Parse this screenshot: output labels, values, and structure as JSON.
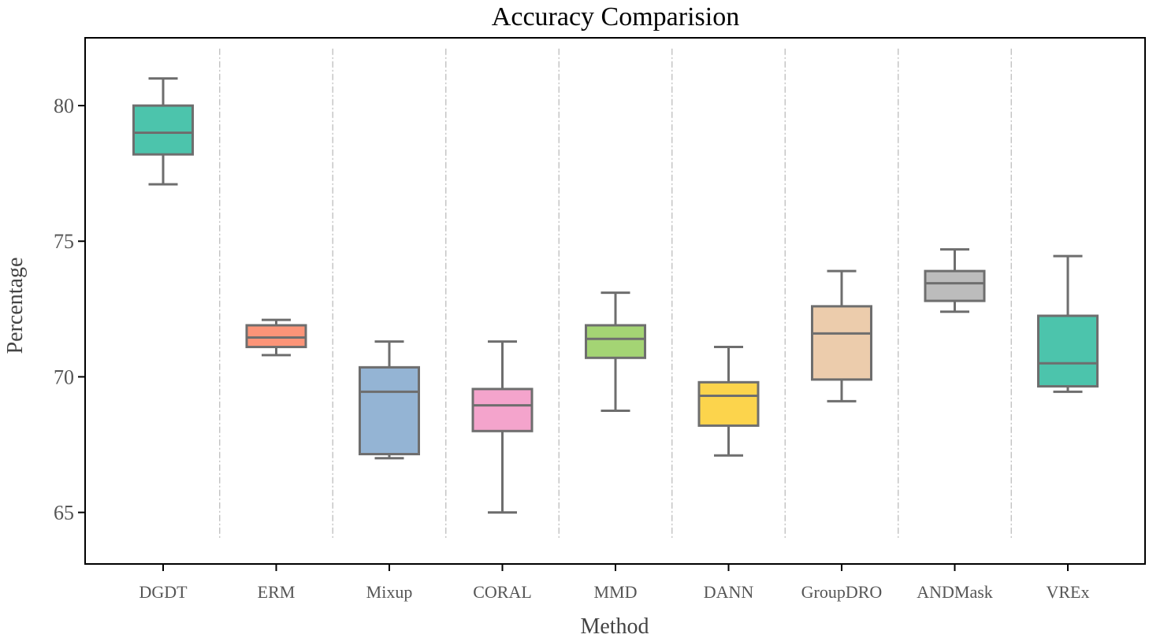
{
  "chart_data": {
    "type": "box",
    "title": "Accuracy Comparision",
    "xlabel": "Method",
    "ylabel": "Percentage",
    "ylim": [
      63.1,
      82.5
    ],
    "yticks": [
      65,
      70,
      75,
      80
    ],
    "grid": "vertical dash-dot separators between methods",
    "categories": [
      "DGDT",
      "ERM",
      "Mixup",
      "CORAL",
      "MMD",
      "DANN",
      "GroupDRO",
      "ANDMask",
      "VREx"
    ],
    "colors": [
      "#4cc4ac",
      "#fc9478",
      "#94b4d4",
      "#f4a4cc",
      "#a4d474",
      "#fcd44c",
      "#ecccac",
      "#bcbcbc",
      "#4cc4ac"
    ],
    "box_edge_color": "#6e6e6e",
    "series": [
      {
        "min": 77.1,
        "q1": 78.2,
        "median": 79.0,
        "q3": 80.0,
        "max": 81.0
      },
      {
        "min": 70.8,
        "q1": 71.1,
        "median": 71.45,
        "q3": 71.9,
        "max": 72.1
      },
      {
        "min": 67.0,
        "q1": 67.15,
        "median": 69.45,
        "q3": 70.35,
        "max": 71.3
      },
      {
        "min": 65.0,
        "q1": 68.0,
        "median": 68.95,
        "q3": 69.55,
        "max": 71.3
      },
      {
        "min": 68.75,
        "q1": 70.7,
        "median": 71.4,
        "q3": 71.9,
        "max": 73.1
      },
      {
        "min": 67.1,
        "q1": 68.2,
        "median": 69.3,
        "q3": 69.8,
        "max": 71.1
      },
      {
        "min": 69.1,
        "q1": 69.9,
        "median": 71.6,
        "q3": 72.6,
        "max": 73.9
      },
      {
        "min": 72.4,
        "q1": 72.8,
        "median": 73.45,
        "q3": 73.9,
        "max": 74.7
      },
      {
        "min": 69.45,
        "q1": 69.65,
        "median": 70.5,
        "q3": 72.25,
        "max": 74.45
      }
    ]
  }
}
